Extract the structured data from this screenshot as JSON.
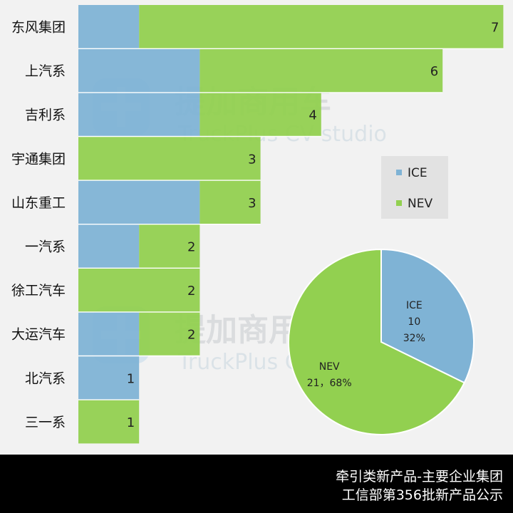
{
  "chart_data": [
    {
      "type": "bar",
      "orientation": "horizontal",
      "stacked": true,
      "categories": [
        "东风集团",
        "上汽系",
        "吉利系",
        "宇通集团",
        "山东重工",
        "一汽系",
        "徐工汽车",
        "大运汽车",
        "北汽系",
        "三一系"
      ],
      "series": [
        {
          "name": "ICE",
          "values": [
            1,
            2,
            2,
            0,
            2,
            1,
            0,
            1,
            1,
            0
          ],
          "color": "#7fb3d5"
        },
        {
          "name": "NEV",
          "values": [
            6,
            4,
            2,
            3,
            1,
            1,
            2,
            1,
            0,
            1
          ],
          "color": "#92d050"
        }
      ],
      "totals": [
        7,
        6,
        4,
        3,
        3,
        2,
        2,
        2,
        1,
        1
      ],
      "xlim": [
        0,
        7
      ]
    },
    {
      "type": "pie",
      "slices": [
        {
          "name": "ICE",
          "value": 10,
          "percent": "32%",
          "label_lines": [
            "ICE",
            "10",
            "32%"
          ],
          "color": "#7fb3d5"
        },
        {
          "name": "NEV",
          "value": 21,
          "percent": "68%",
          "label_lines": [
            "NEV",
            "21，68%"
          ],
          "color": "#92d050"
        }
      ]
    }
  ],
  "legend": {
    "items": [
      {
        "label": "ICE",
        "color": "#7fb3d5"
      },
      {
        "label": "NEV",
        "color": "#92d050"
      }
    ]
  },
  "watermark": {
    "cn": "提加商用车",
    "en": "TruckPlus CV studio"
  },
  "footer": {
    "line1": "牵引类新产品-主要企业集团",
    "line2": "工信部第356批新产品公示"
  }
}
